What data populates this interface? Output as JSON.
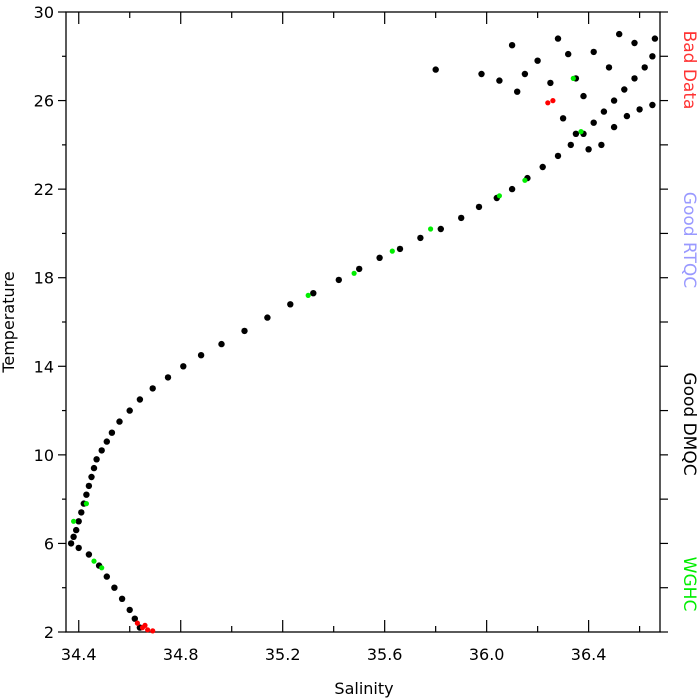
{
  "chart_data": {
    "type": "scatter",
    "xlabel": "Salinity",
    "ylabel": "Temperature",
    "xlim": [
      34.35,
      36.68
    ],
    "ylim": [
      2,
      30
    ],
    "x_ticks": [
      34.4,
      34.8,
      35.2,
      35.6,
      36.0,
      36.4
    ],
    "x_tick_labels": [
      "34.4",
      "34.8",
      "35.2",
      "35.6",
      "36.0",
      "36.4"
    ],
    "y_ticks": [
      2,
      6,
      10,
      14,
      18,
      22,
      26,
      30
    ],
    "y_tick_labels": [
      "2",
      "6",
      "10",
      "14",
      "18",
      "22",
      "26",
      "30"
    ],
    "grid": false,
    "legend_position": "right-side-vertical",
    "legend": [
      {
        "label": "Bad Data",
        "color": "#ff3333"
      },
      {
        "label": "Good RTQC",
        "color": "#9999ff"
      },
      {
        "label": "Good DMQC",
        "color": "#000000"
      },
      {
        "label": "WGHC",
        "color": "#00ee00"
      }
    ],
    "series": [
      {
        "name": "Good DMQC",
        "color": "#000000",
        "points": [
          [
            34.37,
            6.0
          ],
          [
            34.38,
            6.3
          ],
          [
            34.39,
            6.6
          ],
          [
            34.4,
            7.0
          ],
          [
            34.41,
            7.4
          ],
          [
            34.42,
            7.8
          ],
          [
            34.43,
            8.2
          ],
          [
            34.44,
            8.6
          ],
          [
            34.45,
            9.0
          ],
          [
            34.46,
            9.4
          ],
          [
            34.47,
            9.8
          ],
          [
            34.49,
            10.2
          ],
          [
            34.51,
            10.6
          ],
          [
            34.53,
            11.0
          ],
          [
            34.56,
            11.5
          ],
          [
            34.6,
            12.0
          ],
          [
            34.64,
            12.5
          ],
          [
            34.69,
            13.0
          ],
          [
            34.75,
            13.5
          ],
          [
            34.81,
            14.0
          ],
          [
            34.88,
            14.5
          ],
          [
            34.96,
            15.0
          ],
          [
            35.05,
            15.6
          ],
          [
            35.14,
            16.2
          ],
          [
            35.23,
            16.8
          ],
          [
            35.32,
            17.3
          ],
          [
            35.42,
            17.9
          ],
          [
            35.5,
            18.4
          ],
          [
            35.58,
            18.9
          ],
          [
            35.66,
            19.3
          ],
          [
            35.74,
            19.8
          ],
          [
            35.82,
            20.2
          ],
          [
            35.9,
            20.7
          ],
          [
            35.97,
            21.2
          ],
          [
            36.04,
            21.6
          ],
          [
            36.1,
            22.0
          ],
          [
            36.16,
            22.5
          ],
          [
            36.22,
            23.0
          ],
          [
            36.28,
            23.5
          ],
          [
            36.33,
            24.0
          ],
          [
            36.38,
            24.5
          ],
          [
            36.42,
            25.0
          ],
          [
            36.46,
            25.5
          ],
          [
            36.5,
            26.0
          ],
          [
            36.54,
            26.5
          ],
          [
            36.58,
            27.0
          ],
          [
            36.62,
            27.5
          ],
          [
            36.65,
            28.0
          ],
          [
            34.4,
            5.8
          ],
          [
            34.44,
            5.5
          ],
          [
            34.48,
            5.0
          ],
          [
            34.51,
            4.5
          ],
          [
            34.54,
            4.0
          ],
          [
            34.57,
            3.5
          ],
          [
            34.6,
            3.0
          ],
          [
            34.62,
            2.6
          ],
          [
            34.64,
            2.2
          ],
          [
            36.45,
            24.0
          ],
          [
            36.5,
            24.8
          ],
          [
            36.55,
            25.3
          ],
          [
            36.6,
            25.6
          ],
          [
            36.65,
            25.8
          ],
          [
            36.4,
            23.8
          ],
          [
            36.35,
            24.5
          ],
          [
            36.3,
            25.2
          ],
          [
            36.38,
            26.2
          ],
          [
            36.48,
            27.5
          ],
          [
            36.58,
            28.6
          ],
          [
            36.66,
            28.8
          ],
          [
            36.1,
            28.5
          ],
          [
            36.15,
            27.2
          ],
          [
            36.2,
            27.8
          ],
          [
            36.28,
            28.8
          ],
          [
            36.35,
            27.0
          ],
          [
            36.42,
            28.2
          ],
          [
            36.05,
            26.9
          ],
          [
            36.12,
            26.4
          ],
          [
            36.25,
            26.8
          ],
          [
            36.32,
            28.1
          ],
          [
            36.52,
            29.0
          ],
          [
            35.8,
            27.4
          ],
          [
            35.98,
            27.2
          ]
        ]
      },
      {
        "name": "Bad Data",
        "color": "#ff0000",
        "points": [
          [
            34.63,
            2.4
          ],
          [
            34.65,
            2.2
          ],
          [
            34.67,
            2.1
          ],
          [
            34.69,
            2.05
          ],
          [
            34.66,
            2.3
          ],
          [
            36.24,
            25.9
          ],
          [
            36.26,
            26.0
          ]
        ]
      },
      {
        "name": "WGHC",
        "color": "#00ee00",
        "points": [
          [
            34.38,
            7.0
          ],
          [
            34.43,
            7.8
          ],
          [
            34.46,
            5.2
          ],
          [
            34.49,
            4.9
          ],
          [
            35.3,
            17.2
          ],
          [
            35.48,
            18.2
          ],
          [
            35.63,
            19.2
          ],
          [
            35.78,
            20.2
          ],
          [
            36.05,
            21.7
          ],
          [
            36.15,
            22.4
          ],
          [
            36.37,
            24.6
          ],
          [
            36.34,
            27.0
          ]
        ]
      }
    ]
  }
}
